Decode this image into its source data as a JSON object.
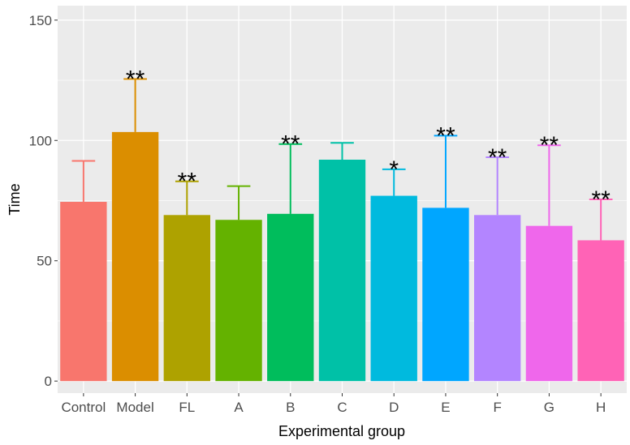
{
  "chart_data": {
    "type": "bar",
    "xlabel": "Experimental group",
    "ylabel": "Time",
    "ylim": [
      -5,
      156
    ],
    "yticks": [
      0,
      50,
      100,
      150
    ],
    "grid": true,
    "error_bars": "upper",
    "categories": [
      "Control",
      "Model",
      "FL",
      "A",
      "B",
      "C",
      "D",
      "E",
      "F",
      "G",
      "H"
    ],
    "values": [
      74.5,
      103.5,
      69,
      67,
      69.5,
      92,
      77,
      72,
      69,
      64.5,
      58.5
    ],
    "error_upper": [
      91.5,
      125.5,
      83,
      81,
      98.5,
      99,
      88,
      102,
      93,
      98,
      75.5
    ],
    "significance": [
      "",
      "**",
      "**",
      "",
      "**",
      "",
      "*",
      "**",
      "**",
      "**",
      "**"
    ],
    "colors": [
      "#F8766D",
      "#DB8E00",
      "#AEA200",
      "#64B200",
      "#00BD5C",
      "#00C1A7",
      "#00BADE",
      "#00A6FF",
      "#B385FF",
      "#EF67EB",
      "#FF63B6"
    ]
  }
}
